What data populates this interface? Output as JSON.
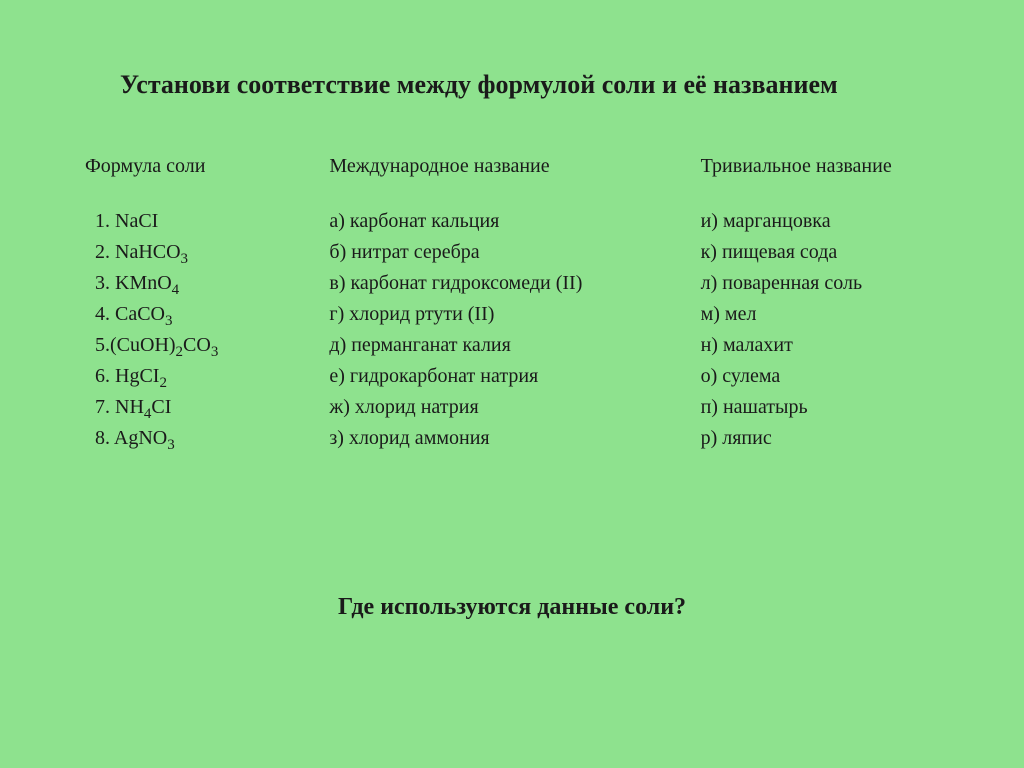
{
  "background_color": "#8ee28e",
  "text_color": "#1a1a1a",
  "title": "Установи соответствие между формулой соли и её названием",
  "question": "Где используются данные соли?",
  "columns": {
    "formula": {
      "header": "Формула соли",
      "items": [
        "1. NaCI",
        "2. NaHCO₃",
        "3. KMnO₄",
        "4. CaCO₃",
        "5.(CuOH)₂CO₃",
        "6. HgCI₂",
        "7. NH₄CI",
        "8. AgNO₃"
      ]
    },
    "intl": {
      "header": "Международное название",
      "items": [
        "а) карбонат кальция",
        "б) нитрат серебра",
        "в) карбонат гидроксомеди (II)",
        " г) хлорид ртути (II)",
        " д) перманганат калия",
        " е) гидрокарбонат натрия",
        "ж) хлорид натрия",
        " з) хлорид аммония"
      ]
    },
    "trivial": {
      "header": "Тривиальное название",
      "items": [
        "и)  марганцовка",
        "к)  пищевая сода",
        "л)  поваренная соль",
        " м)  мел",
        "н)  малахит",
        "о)  сулема",
        "п)  нашатырь",
        " р) ляпис"
      ]
    }
  }
}
